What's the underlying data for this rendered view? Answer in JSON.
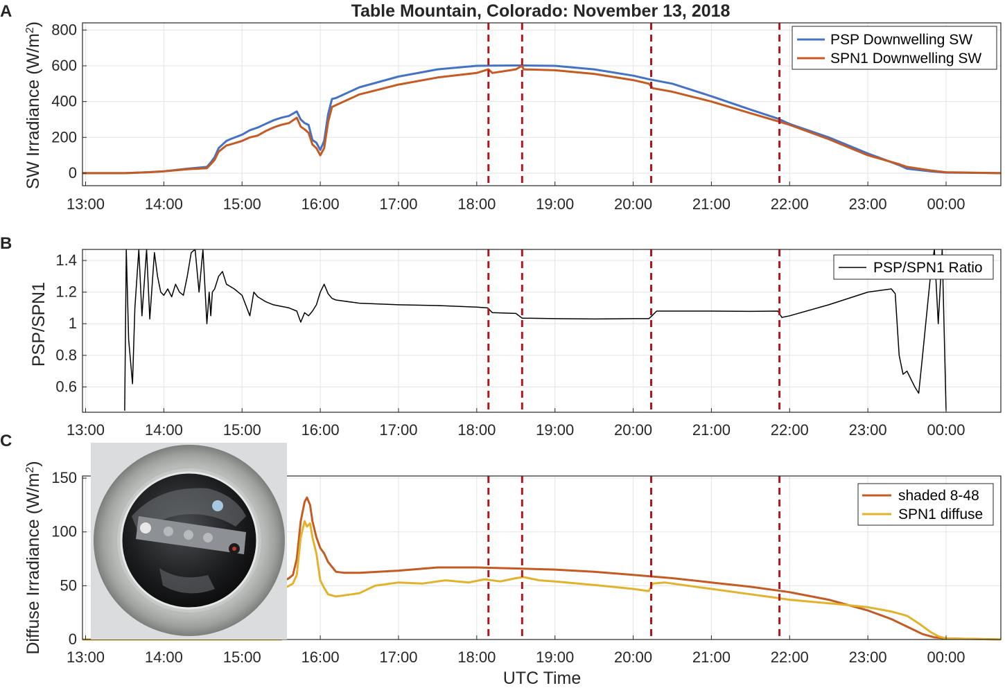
{
  "chart_data": [
    {
      "type": "line",
      "panel": "A",
      "title": "Table Mountain, Colorado: November 13, 2018",
      "xlabel": "",
      "ylabel": "SW Irradiance (W/m",
      "ylabel_sup": "2",
      "ylabel_close": ")",
      "xlim": [
        12.96,
        24.7
      ],
      "ylim": [
        -70,
        840
      ],
      "yticks": [
        0,
        200,
        400,
        600,
        800
      ],
      "xticks": [
        13,
        14,
        15,
        16,
        17,
        18,
        19,
        20,
        21,
        22,
        23,
        24
      ],
      "xtick_labels": [
        "13:00",
        "14:00",
        "15:00",
        "16:00",
        "17:00",
        "18:00",
        "19:00",
        "20:00",
        "21:00",
        "22:00",
        "23:00",
        "00:00"
      ],
      "grid": true,
      "legend_position": "top-right",
      "series": [
        {
          "name": "PSP Downwelling SW",
          "color": "#4472C4",
          "x": [
            12.96,
            13.5,
            13.8,
            14.0,
            14.3,
            14.55,
            14.6,
            14.65,
            14.7,
            14.8,
            14.85,
            15.0,
            15.1,
            15.2,
            15.3,
            15.4,
            15.5,
            15.6,
            15.7,
            15.75,
            15.8,
            15.85,
            15.9,
            15.95,
            16.0,
            16.05,
            16.1,
            16.15,
            16.2,
            16.5,
            17.0,
            17.5,
            18.0,
            18.2,
            18.5,
            18.6,
            19.0,
            19.5,
            20.0,
            20.2,
            20.5,
            21.0,
            21.5,
            21.85,
            22.0,
            22.5,
            23.0,
            23.4,
            23.5,
            23.8,
            24.0,
            24.7
          ],
          "y": [
            0,
            0,
            5,
            10,
            25,
            35,
            60,
            90,
            140,
            180,
            190,
            215,
            240,
            255,
            275,
            295,
            310,
            320,
            345,
            300,
            280,
            270,
            185,
            170,
            130,
            180,
            330,
            415,
            420,
            480,
            540,
            580,
            600,
            601,
            602,
            602,
            600,
            580,
            545,
            525,
            500,
            430,
            355,
            305,
            275,
            200,
            110,
            45,
            25,
            10,
            3,
            0
          ]
        },
        {
          "name": "SPN1 Downwelling SW",
          "color": "#C55A22",
          "x": [
            12.96,
            13.5,
            13.8,
            14.0,
            14.3,
            14.55,
            14.6,
            14.65,
            14.7,
            14.8,
            14.85,
            15.0,
            15.1,
            15.2,
            15.3,
            15.4,
            15.5,
            15.6,
            15.7,
            15.75,
            15.8,
            15.85,
            15.9,
            15.95,
            16.0,
            16.05,
            16.1,
            16.15,
            16.2,
            16.5,
            17.0,
            17.5,
            18.0,
            18.15,
            18.2,
            18.5,
            18.58,
            18.6,
            19.0,
            19.5,
            20.0,
            20.2,
            20.25,
            20.5,
            21.0,
            21.5,
            21.85,
            22.0,
            22.5,
            23.0,
            23.4,
            23.5,
            23.8,
            24.0,
            24.7
          ],
          "y": [
            0,
            0,
            5,
            10,
            22,
            28,
            50,
            75,
            120,
            155,
            160,
            180,
            200,
            210,
            235,
            255,
            270,
            280,
            310,
            260,
            245,
            225,
            160,
            140,
            100,
            140,
            285,
            370,
            380,
            440,
            495,
            535,
            560,
            580,
            560,
            580,
            600,
            580,
            575,
            555,
            520,
            500,
            475,
            455,
            400,
            335,
            290,
            270,
            190,
            100,
            50,
            35,
            15,
            5,
            0
          ]
        }
      ],
      "vlines": [
        18.15,
        18.58,
        20.23,
        21.87
      ],
      "vline_color": "#B0161E"
    },
    {
      "type": "line",
      "panel": "B",
      "xlabel": "",
      "ylabel": "PSP/SPN1",
      "xlim": [
        12.96,
        24.7
      ],
      "ylim": [
        0.44,
        1.47
      ],
      "yticks": [
        0.6,
        0.8,
        1,
        1.2,
        1.4
      ],
      "ytick_labels": [
        "0.6",
        "0.8",
        "1",
        "1.2",
        "1.4"
      ],
      "xticks": [
        13,
        14,
        15,
        16,
        17,
        18,
        19,
        20,
        21,
        22,
        23,
        24
      ],
      "xtick_labels": [
        "13:00",
        "14:00",
        "15:00",
        "16:00",
        "17:00",
        "18:00",
        "19:00",
        "20:00",
        "21:00",
        "22:00",
        "23:00",
        "00:00"
      ],
      "grid": true,
      "legend_position": "top-right",
      "series": [
        {
          "name": "PSP/SPN1 Ratio",
          "color": "#000000",
          "x": [
            13.5,
            13.52,
            13.55,
            13.6,
            13.63,
            13.68,
            13.72,
            13.78,
            13.82,
            13.88,
            13.92,
            13.96,
            14.0,
            14.05,
            14.1,
            14.15,
            14.2,
            14.25,
            14.3,
            14.35,
            14.4,
            14.45,
            14.5,
            14.55,
            14.58,
            14.6,
            14.62,
            14.65,
            14.7,
            14.75,
            14.8,
            14.9,
            15.0,
            15.1,
            15.15,
            15.2,
            15.3,
            15.4,
            15.5,
            15.6,
            15.7,
            15.75,
            15.8,
            15.85,
            15.9,
            15.95,
            16.0,
            16.05,
            16.1,
            16.15,
            16.2,
            16.5,
            17.0,
            17.5,
            18.0,
            18.14,
            18.2,
            18.5,
            18.58,
            18.6,
            19.0,
            19.5,
            20.0,
            20.2,
            20.24,
            20.3,
            20.5,
            21.0,
            21.5,
            21.85,
            21.9,
            22.0,
            22.5,
            23.0,
            23.3,
            23.35,
            23.4,
            23.45,
            23.5,
            23.6,
            23.65,
            23.7,
            23.8,
            23.85,
            23.9,
            23.95,
            24.0
          ],
          "y": [
            0.45,
            1.47,
            0.9,
            0.62,
            1.1,
            1.47,
            1.05,
            1.47,
            1.03,
            1.45,
            1.3,
            1.2,
            1.18,
            1.22,
            1.17,
            1.25,
            1.2,
            1.18,
            1.3,
            1.45,
            1.47,
            1.2,
            1.47,
            1.0,
            1.2,
            1.05,
            1.2,
            1.22,
            1.3,
            1.33,
            1.25,
            1.22,
            1.18,
            1.05,
            1.2,
            1.17,
            1.14,
            1.12,
            1.11,
            1.1,
            1.08,
            1.01,
            1.07,
            1.05,
            1.08,
            1.12,
            1.2,
            1.25,
            1.19,
            1.16,
            1.15,
            1.13,
            1.12,
            1.115,
            1.105,
            1.1,
            1.07,
            1.065,
            1.035,
            1.035,
            1.032,
            1.03,
            1.032,
            1.032,
            1.05,
            1.08,
            1.08,
            1.08,
            1.078,
            1.08,
            1.04,
            1.05,
            1.12,
            1.2,
            1.22,
            1.19,
            0.8,
            0.68,
            0.7,
            0.6,
            0.56,
            0.8,
            1.3,
            1.47,
            1.0,
            1.47,
            0.45
          ]
        }
      ],
      "vlines": [
        18.15,
        18.58,
        20.23,
        21.87
      ],
      "vline_color": "#B0161E"
    },
    {
      "type": "line",
      "panel": "C",
      "xlabel": "UTC Time",
      "ylabel": "Diffuse Irradiance (W/m",
      "ylabel_sup": "2",
      "ylabel_close": ")",
      "xlim": [
        12.96,
        24.7
      ],
      "ylim": [
        0,
        152
      ],
      "yticks": [
        0,
        50,
        100,
        150
      ],
      "xticks": [
        13,
        14,
        15,
        16,
        17,
        18,
        19,
        20,
        21,
        22,
        23,
        24
      ],
      "xtick_labels": [
        "13:00",
        "14:00",
        "15:00",
        "16:00",
        "17:00",
        "18:00",
        "19:00",
        "20:00",
        "21:00",
        "22:00",
        "23:00",
        "00:00"
      ],
      "grid": true,
      "legend_position": "right",
      "series": [
        {
          "name": "shaded 8-48",
          "color": "#C55A22",
          "x": [
            12.96,
            13.5,
            14.0,
            14.5,
            15.0,
            15.5,
            15.55,
            15.6,
            15.65,
            15.7,
            15.75,
            15.8,
            15.83,
            15.87,
            15.9,
            15.95,
            16.0,
            16.05,
            16.1,
            16.2,
            16.3,
            16.5,
            17.0,
            17.5,
            18.0,
            18.5,
            19.0,
            19.5,
            20.0,
            20.5,
            21.0,
            21.5,
            22.0,
            22.5,
            23.0,
            23.3,
            23.5,
            23.7,
            23.85,
            24.0,
            24.7
          ],
          "y": [
            0,
            0,
            0,
            0,
            0,
            0,
            55,
            57,
            60,
            75,
            110,
            128,
            132,
            125,
            110,
            95,
            85,
            80,
            72,
            63,
            62,
            62,
            64,
            67,
            67,
            66,
            65,
            63,
            60,
            57,
            53,
            49,
            44,
            37,
            27,
            19,
            12,
            5,
            2,
            1,
            0
          ]
        },
        {
          "name": "SPN1 diffuse",
          "color": "#E3B22C",
          "x": [
            12.96,
            13.5,
            14.0,
            14.5,
            15.0,
            15.5,
            15.55,
            15.6,
            15.65,
            15.7,
            15.75,
            15.8,
            15.83,
            15.87,
            15.9,
            15.95,
            16.0,
            16.05,
            16.1,
            16.2,
            16.4,
            16.5,
            16.7,
            17.0,
            17.3,
            17.6,
            17.9,
            18.1,
            18.3,
            18.5,
            18.6,
            18.8,
            19.0,
            19.3,
            19.6,
            20.0,
            20.2,
            20.25,
            20.4,
            20.6,
            21.0,
            21.4,
            21.8,
            22.0,
            22.3,
            22.6,
            23.0,
            23.3,
            23.4,
            23.5,
            23.65,
            23.8,
            23.9,
            24.0,
            24.7
          ],
          "y": [
            0,
            0,
            0,
            0,
            0,
            0,
            48,
            50,
            52,
            60,
            95,
            110,
            105,
            108,
            95,
            80,
            55,
            48,
            42,
            40,
            42,
            43,
            50,
            53,
            52,
            55,
            53,
            56,
            54,
            57,
            58,
            55,
            54,
            52,
            50,
            47,
            45,
            52,
            53,
            51,
            47,
            43,
            39,
            37,
            35,
            33,
            30,
            26,
            24,
            22,
            15,
            7,
            3,
            1,
            0
          ]
        }
      ],
      "vlines": [
        18.15,
        18.58,
        20.23,
        21.87
      ],
      "vline_color": "#B0161E"
    }
  ]
}
